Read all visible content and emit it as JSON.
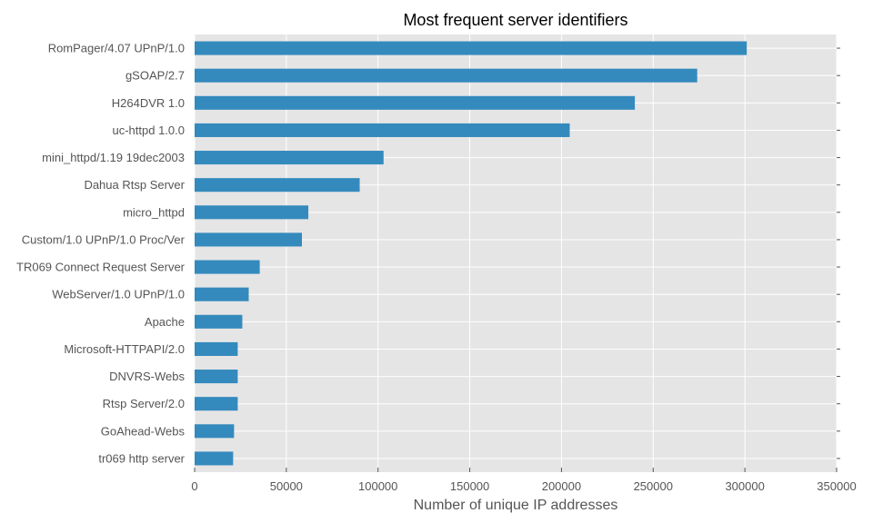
{
  "chart_data": {
    "type": "bar",
    "orientation": "horizontal",
    "title": "Most frequent server identifiers",
    "xlabel": "Number of unique IP addresses",
    "ylabel": "",
    "xlim": [
      0,
      350000
    ],
    "xticks": [
      0,
      50000,
      100000,
      150000,
      200000,
      250000,
      300000,
      350000
    ],
    "xtick_labels": [
      "0",
      "50000",
      "100000",
      "150000",
      "200000",
      "250000",
      "300000",
      "350000"
    ],
    "grid": true,
    "legend": "none",
    "bar_color": "#348ABD",
    "plot_background": "#E5E5E5",
    "categories": [
      "RomPager/4.07 UPnP/1.0",
      "gSOAP/2.7",
      "H264DVR 1.0",
      "uc-httpd 1.0.0",
      "mini_httpd/1.19 19dec2003",
      "Dahua Rtsp Server",
      "micro_httpd",
      "Custom/1.0 UPnP/1.0 Proc/Ver",
      "TR069 Connect Request Server",
      "WebServer/1.0 UPnP/1.0",
      "Apache",
      "Microsoft-HTTPAPI/2.0",
      "DNVRS-Webs",
      "Rtsp Server/2.0",
      "GoAhead-Webs",
      "tr069 http server"
    ],
    "values": [
      301000,
      274000,
      240000,
      204500,
      103000,
      90000,
      62000,
      58500,
      35500,
      29500,
      26000,
      23500,
      23500,
      23500,
      21500,
      21000
    ]
  }
}
